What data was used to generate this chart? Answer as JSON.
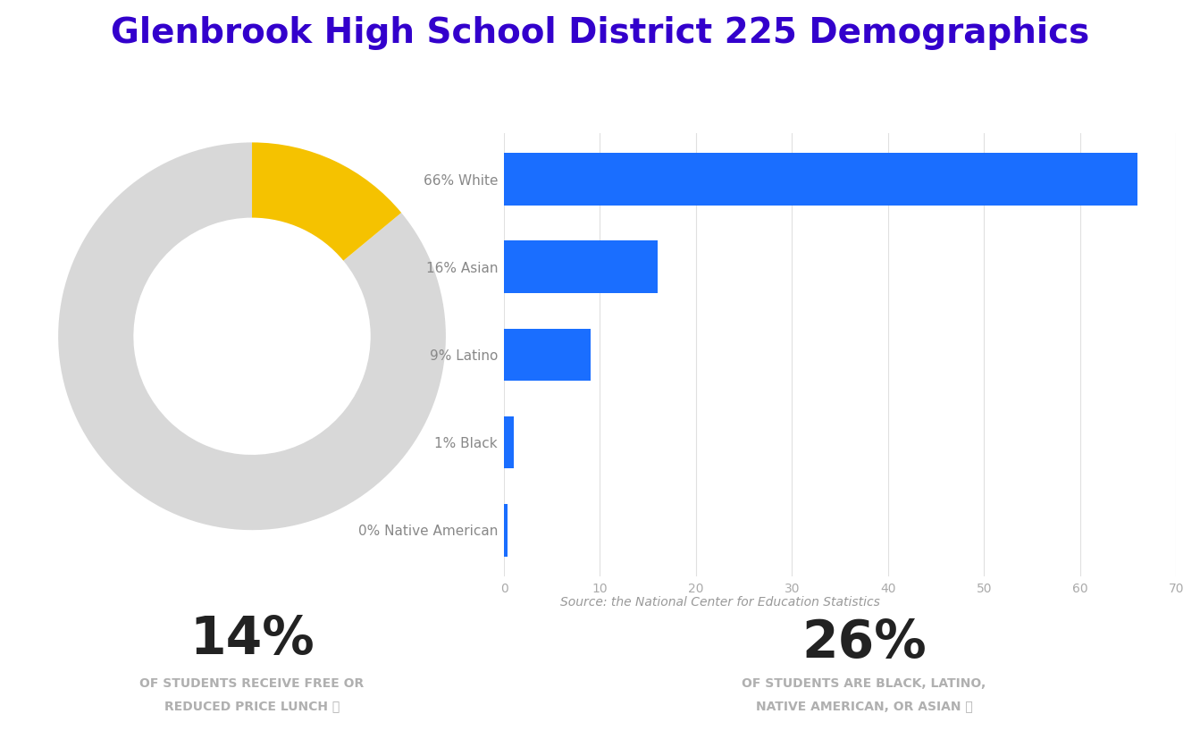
{
  "title": "Glenbrook High School District 225 Demographics",
  "title_color": "#3300cc",
  "title_fontsize": 28,
  "bar_categories": [
    "66% White",
    "16% Asian",
    "9% Latino",
    "1% Black",
    "0% Native American"
  ],
  "bar_values": [
    66,
    16,
    9,
    1,
    0.4
  ],
  "bar_color": "#1a6eff",
  "bar_xlim": [
    0,
    70
  ],
  "bar_xticks": [
    0,
    10,
    20,
    30,
    40,
    50,
    60,
    70
  ],
  "source_text": "Source: the National Center for Education Statistics",
  "source_color": "#999999",
  "donut_yellow_pct": 14,
  "donut_yellow_color": "#f5c200",
  "donut_gray_color": "#d8d8d8",
  "stat1_value": "14%",
  "stat1_label1": "OF STUDENTS RECEIVE FREE OR",
  "stat1_label2": "REDUCED PRICE LUNCH ⓘ",
  "stat2_value": "26%",
  "stat2_label1": "OF STUDENTS ARE BLACK, LATINO,",
  "stat2_label2": "NATIVE AMERICAN, OR ASIAN ⓘ",
  "stat_value_color": "#222222",
  "stat_label_color": "#b0b0b0",
  "stat_value_fontsize": 42,
  "stat_label_fontsize": 10,
  "background_color": "#ffffff",
  "grid_color": "#e0e0e0",
  "xtick_label_color": "#aaaaaa",
  "ytick_label_color": "#888888"
}
